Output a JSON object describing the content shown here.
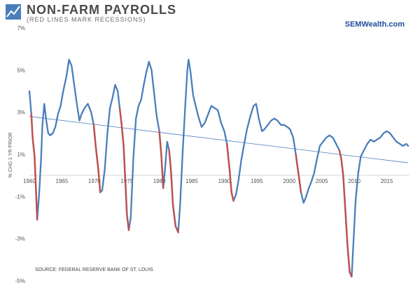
{
  "chart_data": {
    "type": "line",
    "title": "NON-FARM PAYROLLS",
    "subtitle": "(RED LINES MARK RECESSIONS)",
    "brand": "SEMWealth.com",
    "ylabel": "% CHG 1 YR PRIOR",
    "source": "SOURCE: FEDERAL RESERVE BANK OF ST. LOUIS",
    "xlim": [
      1960,
      2018.5
    ],
    "ylim": [
      -5,
      7
    ],
    "x_ticks": [
      1960,
      1965,
      1970,
      1975,
      1980,
      1985,
      1990,
      1995,
      2000,
      2005,
      2010,
      2015
    ],
    "x_tick_labels": [
      "1960",
      "1965",
      "1970",
      "1975",
      "1980",
      "1985",
      "1990",
      "1995",
      "2000",
      "2005",
      "2010",
      "2015"
    ],
    "y_ticks": [
      -5,
      -3,
      -1,
      1,
      3,
      5,
      7
    ],
    "y_tick_labels": [
      "-5%",
      "-3%",
      "-1%",
      "1%",
      "3%",
      "5%",
      "7%"
    ],
    "grid": false,
    "legend": "none",
    "colors": {
      "series": "#4a7ebb",
      "recession": "#c0504d",
      "trend": "#4a7ebb",
      "axis": "#d9d9d9"
    },
    "series": [
      {
        "values": [
          [
            1960.0,
            4.0
          ],
          [
            1960.3,
            2.9
          ],
          [
            1960.5,
            1.8
          ],
          [
            1960.8,
            0.9
          ],
          [
            1961.0,
            -0.6
          ],
          [
            1961.2,
            -2.1
          ],
          [
            1961.5,
            -0.9
          ],
          [
            1961.8,
            0.8
          ],
          [
            1962.0,
            2.4
          ],
          [
            1962.3,
            3.4
          ],
          [
            1962.6,
            2.6
          ],
          [
            1962.9,
            2.0
          ],
          [
            1963.2,
            1.9
          ],
          [
            1963.6,
            2.0
          ],
          [
            1964.0,
            2.3
          ],
          [
            1964.4,
            2.9
          ],
          [
            1964.8,
            3.3
          ],
          [
            1965.2,
            4.0
          ],
          [
            1965.7,
            4.7
          ],
          [
            1966.1,
            5.5
          ],
          [
            1966.5,
            5.2
          ],
          [
            1966.9,
            4.3
          ],
          [
            1967.3,
            3.4
          ],
          [
            1967.7,
            2.6
          ],
          [
            1968.0,
            2.9
          ],
          [
            1968.5,
            3.2
          ],
          [
            1969.0,
            3.4
          ],
          [
            1969.5,
            3.0
          ],
          [
            1969.9,
            2.4
          ],
          [
            1970.2,
            1.4
          ],
          [
            1970.6,
            0.3
          ],
          [
            1970.9,
            -0.8
          ],
          [
            1971.2,
            -0.7
          ],
          [
            1971.6,
            0.3
          ],
          [
            1972.0,
            2.0
          ],
          [
            1972.4,
            3.2
          ],
          [
            1972.8,
            3.7
          ],
          [
            1973.2,
            4.3
          ],
          [
            1973.6,
            4.0
          ],
          [
            1973.9,
            3.2
          ],
          [
            1974.2,
            2.4
          ],
          [
            1974.5,
            1.4
          ],
          [
            1974.8,
            -0.5
          ],
          [
            1975.0,
            -1.8
          ],
          [
            1975.3,
            -2.6
          ],
          [
            1975.6,
            -2.0
          ],
          [
            1976.0,
            0.8
          ],
          [
            1976.4,
            2.7
          ],
          [
            1976.8,
            3.3
          ],
          [
            1977.2,
            3.6
          ],
          [
            1977.6,
            4.3
          ],
          [
            1978.0,
            4.9
          ],
          [
            1978.4,
            5.4
          ],
          [
            1978.8,
            5.0
          ],
          [
            1979.2,
            3.9
          ],
          [
            1979.6,
            2.8
          ],
          [
            1980.0,
            2.1
          ],
          [
            1980.3,
            1.0
          ],
          [
            1980.6,
            -0.6
          ],
          [
            1980.9,
            0.4
          ],
          [
            1981.2,
            1.6
          ],
          [
            1981.5,
            1.2
          ],
          [
            1981.8,
            0.2
          ],
          [
            1982.1,
            -1.4
          ],
          [
            1982.5,
            -2.4
          ],
          [
            1982.9,
            -2.7
          ],
          [
            1983.2,
            -1.4
          ],
          [
            1983.6,
            1.2
          ],
          [
            1984.0,
            3.4
          ],
          [
            1984.3,
            5.0
          ],
          [
            1984.5,
            5.5
          ],
          [
            1984.8,
            4.9
          ],
          [
            1985.2,
            3.8
          ],
          [
            1985.6,
            3.3
          ],
          [
            1986.0,
            2.8
          ],
          [
            1986.5,
            2.3
          ],
          [
            1987.0,
            2.5
          ],
          [
            1987.5,
            2.9
          ],
          [
            1988.0,
            3.3
          ],
          [
            1988.5,
            3.2
          ],
          [
            1989.0,
            3.1
          ],
          [
            1989.5,
            2.5
          ],
          [
            1990.0,
            2.1
          ],
          [
            1990.4,
            1.5
          ],
          [
            1990.8,
            0.3
          ],
          [
            1991.1,
            -0.8
          ],
          [
            1991.4,
            -1.2
          ],
          [
            1991.8,
            -0.9
          ],
          [
            1992.2,
            -0.2
          ],
          [
            1992.6,
            0.7
          ],
          [
            1993.0,
            1.4
          ],
          [
            1993.5,
            2.2
          ],
          [
            1994.0,
            2.8
          ],
          [
            1994.5,
            3.3
          ],
          [
            1994.9,
            3.4
          ],
          [
            1995.3,
            2.7
          ],
          [
            1995.8,
            2.1
          ],
          [
            1996.2,
            2.2
          ],
          [
            1996.7,
            2.4
          ],
          [
            1997.2,
            2.6
          ],
          [
            1997.7,
            2.7
          ],
          [
            1998.2,
            2.6
          ],
          [
            1998.7,
            2.4
          ],
          [
            1999.2,
            2.4
          ],
          [
            1999.7,
            2.3
          ],
          [
            2000.1,
            2.2
          ],
          [
            2000.6,
            1.8
          ],
          [
            2001.0,
            1.0
          ],
          [
            2001.4,
            0.1
          ],
          [
            2001.8,
            -0.8
          ],
          [
            2002.2,
            -1.3
          ],
          [
            2002.6,
            -1.0
          ],
          [
            2003.0,
            -0.6
          ],
          [
            2003.4,
            -0.3
          ],
          [
            2003.8,
            0.1
          ],
          [
            2004.2,
            0.7
          ],
          [
            2004.7,
            1.4
          ],
          [
            2005.2,
            1.6
          ],
          [
            2005.7,
            1.8
          ],
          [
            2006.2,
            1.9
          ],
          [
            2006.7,
            1.8
          ],
          [
            2007.2,
            1.5
          ],
          [
            2007.7,
            1.2
          ],
          [
            2008.0,
            0.8
          ],
          [
            2008.3,
            0.0
          ],
          [
            2008.7,
            -2.0
          ],
          [
            2009.0,
            -3.5
          ],
          [
            2009.3,
            -4.6
          ],
          [
            2009.6,
            -4.8
          ],
          [
            2009.9,
            -3.0
          ],
          [
            2010.2,
            -1.2
          ],
          [
            2010.6,
            0.1
          ],
          [
            2011.0,
            0.9
          ],
          [
            2011.5,
            1.2
          ],
          [
            2012.0,
            1.5
          ],
          [
            2012.5,
            1.7
          ],
          [
            2013.0,
            1.6
          ],
          [
            2013.5,
            1.7
          ],
          [
            2014.0,
            1.8
          ],
          [
            2014.5,
            2.0
          ],
          [
            2015.0,
            2.1
          ],
          [
            2015.5,
            2.0
          ],
          [
            2016.0,
            1.8
          ],
          [
            2016.5,
            1.6
          ],
          [
            2017.0,
            1.5
          ],
          [
            2017.5,
            1.4
          ],
          [
            2018.0,
            1.5
          ],
          [
            2018.3,
            1.4
          ]
        ]
      }
    ],
    "recessions": [
      [
        1960.3,
        1961.2
      ],
      [
        1969.9,
        1970.9
      ],
      [
        1973.9,
        1975.3
      ],
      [
        1980.0,
        1980.6
      ],
      [
        1981.5,
        1982.9
      ],
      [
        1990.4,
        1991.4
      ],
      [
        2001.0,
        2001.8
      ],
      [
        2007.7,
        2009.6
      ]
    ],
    "trend": {
      "x": [
        1960,
        2018.3
      ],
      "y": [
        2.8,
        0.6
      ]
    }
  }
}
